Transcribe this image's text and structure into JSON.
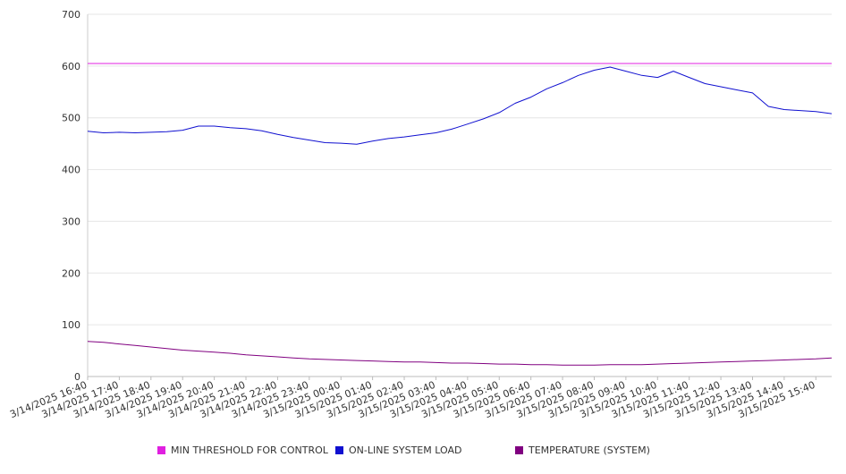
{
  "chart_data": {
    "type": "line",
    "title": "",
    "xlabel": "",
    "ylabel": "",
    "ylim": [
      0,
      700
    ],
    "y_ticks": [
      0,
      100,
      200,
      300,
      400,
      500,
      600,
      700
    ],
    "grid": true,
    "legend_position": "bottom",
    "x_tick_labels": [
      "3/14/2025 16:40",
      "3/14/2025 17:40",
      "3/14/2025 18:40",
      "3/14/2025 19:40",
      "3/14/2025 20:40",
      "3/14/2025 21:40",
      "3/14/2025 22:40",
      "3/14/2025 23:40",
      "3/15/2025 00:40",
      "3/15/2025 01:40",
      "3/15/2025 02:40",
      "3/15/2025 03:40",
      "3/15/2025 04:40",
      "3/15/2025 05:40",
      "3/15/2025 06:40",
      "3/15/2025 07:40",
      "3/15/2025 08:40",
      "3/15/2025 09:40",
      "3/15/2025 10:40",
      "3/15/2025 11:40",
      "3/15/2025 12:40",
      "3/15/2025 13:40",
      "3/15/2025 14:40",
      "3/15/2025 15:40"
    ],
    "x_points": [
      "3/14/2025 16:40",
      "3/14/2025 17:10",
      "3/14/2025 17:40",
      "3/14/2025 18:10",
      "3/14/2025 18:40",
      "3/14/2025 19:10",
      "3/14/2025 19:40",
      "3/14/2025 20:10",
      "3/14/2025 20:40",
      "3/14/2025 21:10",
      "3/14/2025 21:40",
      "3/14/2025 22:10",
      "3/14/2025 22:40",
      "3/14/2025 23:10",
      "3/14/2025 23:40",
      "3/15/2025 00:10",
      "3/15/2025 00:40",
      "3/15/2025 01:10",
      "3/15/2025 01:40",
      "3/15/2025 02:10",
      "3/15/2025 02:40",
      "3/15/2025 03:10",
      "3/15/2025 03:40",
      "3/15/2025 04:10",
      "3/15/2025 04:40",
      "3/15/2025 05:10",
      "3/15/2025 05:40",
      "3/15/2025 06:10",
      "3/15/2025 06:40",
      "3/15/2025 07:10",
      "3/15/2025 07:40",
      "3/15/2025 08:10",
      "3/15/2025 08:40",
      "3/15/2025 09:10",
      "3/15/2025 09:40",
      "3/15/2025 10:10",
      "3/15/2025 10:40",
      "3/15/2025 11:10",
      "3/15/2025 11:40",
      "3/15/2025 12:10",
      "3/15/2025 12:40",
      "3/15/2025 13:10",
      "3/15/2025 13:40",
      "3/15/2025 14:10",
      "3/15/2025 14:40",
      "3/15/2025 15:10",
      "3/15/2025 15:40",
      "3/15/2025 16:10"
    ],
    "series": [
      {
        "name": "MIN THRESHOLD FOR CONTROL",
        "color": "#e020e0",
        "values": [
          605,
          605,
          605,
          605,
          605,
          605,
          605,
          605,
          605,
          605,
          605,
          605,
          605,
          605,
          605,
          605,
          605,
          605,
          605,
          605,
          605,
          605,
          605,
          605,
          605,
          605,
          605,
          605,
          605,
          605,
          605,
          605,
          605,
          605,
          605,
          605,
          605,
          605,
          605,
          605,
          605,
          605,
          605,
          605,
          605,
          605,
          605,
          605
        ]
      },
      {
        "name": "ON-LINE SYSTEM LOAD",
        "color": "#1010d0",
        "values": [
          474,
          471,
          472,
          471,
          472,
          473,
          476,
          484,
          484,
          481,
          479,
          475,
          468,
          462,
          457,
          452,
          451,
          449,
          455,
          460,
          463,
          467,
          471,
          478,
          488,
          498,
          510,
          528,
          540,
          556,
          568,
          582,
          592,
          598,
          590,
          582,
          578,
          590,
          578,
          566,
          560,
          554,
          548,
          522,
          516,
          514,
          512,
          508
        ]
      },
      {
        "name": "TEMPERATURE (SYSTEM)",
        "color": "#800080",
        "values": [
          68,
          66,
          63,
          60,
          57,
          54,
          51,
          49,
          47,
          45,
          42,
          40,
          38,
          36,
          34,
          33,
          32,
          31,
          30,
          29,
          28,
          28,
          27,
          26,
          26,
          25,
          24,
          24,
          23,
          23,
          22,
          22,
          22,
          23,
          23,
          23,
          24,
          25,
          26,
          27,
          28,
          29,
          30,
          31,
          32,
          33,
          34,
          36
        ]
      }
    ]
  }
}
